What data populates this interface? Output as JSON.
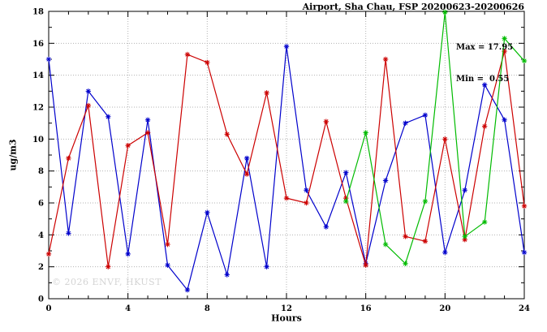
{
  "chart_data": {
    "type": "line",
    "title": "Airport, Sha Chau, FSP 20200623-20200626",
    "xlabel": "Hours",
    "ylabel": "ug/m3",
    "xlim": [
      0,
      24
    ],
    "ylim": [
      0,
      18
    ],
    "x_major_ticks": [
      0,
      4,
      8,
      12,
      16,
      20,
      24
    ],
    "x_minor_step": 1,
    "y_major_ticks": [
      0,
      2,
      4,
      6,
      8,
      10,
      12,
      14,
      16,
      18
    ],
    "y_minor_step": 1,
    "grid": "dotted-at-major-ticks",
    "legend_position": "none",
    "marker": "asterisk",
    "annotations": [
      "Max = 17.95",
      "Min =  0.55"
    ],
    "annotation_values": {
      "max": 17.95,
      "min": 0.55
    },
    "watermark": "© 2026 ENVF, HKUST",
    "colors": {
      "axis": "#000000",
      "grid": "#b3b3b3"
    },
    "series": [
      {
        "name": "blue",
        "color": "#0000cc",
        "points": [
          [
            0,
            15.0
          ],
          [
            1,
            4.1
          ],
          [
            2,
            13.0
          ],
          [
            3,
            11.4
          ],
          [
            4,
            2.8
          ],
          [
            5,
            11.2
          ],
          [
            6,
            2.1
          ],
          [
            7,
            0.55
          ],
          [
            8,
            5.4
          ],
          [
            9,
            1.5
          ],
          [
            10,
            8.8
          ],
          [
            11,
            2.0
          ],
          [
            12,
            15.8
          ],
          [
            13,
            6.8
          ],
          [
            14,
            4.5
          ],
          [
            15,
            7.9
          ],
          [
            16,
            2.2
          ],
          [
            17,
            7.4
          ],
          [
            18,
            11.0
          ],
          [
            19,
            11.5
          ],
          [
            20,
            2.9
          ],
          [
            21,
            6.8
          ],
          [
            22,
            13.4
          ],
          [
            23,
            11.2
          ],
          [
            24,
            2.9
          ]
        ]
      },
      {
        "name": "red",
        "color": "#cc0000",
        "points": [
          [
            0,
            2.8
          ],
          [
            1,
            8.8
          ],
          [
            2,
            12.1
          ],
          [
            3,
            2.0
          ],
          [
            4,
            9.6
          ],
          [
            5,
            10.4
          ],
          [
            6,
            3.4
          ],
          [
            7,
            15.3
          ],
          [
            8,
            14.8
          ],
          [
            9,
            10.3
          ],
          [
            10,
            7.8
          ],
          [
            11,
            12.9
          ],
          [
            12,
            6.3
          ],
          [
            13,
            6.0
          ],
          [
            14,
            11.1
          ],
          [
            15,
            6.3
          ],
          [
            16,
            2.1
          ],
          [
            17,
            15.0
          ],
          [
            18,
            3.9
          ],
          [
            19,
            3.6
          ],
          [
            20,
            10.0
          ],
          [
            21,
            3.7
          ],
          [
            22,
            10.8
          ],
          [
            23,
            15.5
          ],
          [
            24,
            5.8
          ]
        ]
      },
      {
        "name": "green",
        "color": "#00bb00",
        "points": [
          [
            15,
            6.1
          ],
          [
            16,
            10.4
          ],
          [
            17,
            3.4
          ],
          [
            18,
            2.2
          ],
          [
            19,
            6.1
          ],
          [
            20,
            17.95
          ],
          [
            21,
            3.9
          ],
          [
            22,
            4.8
          ],
          [
            23,
            16.3
          ],
          [
            24,
            14.9
          ]
        ]
      }
    ]
  }
}
